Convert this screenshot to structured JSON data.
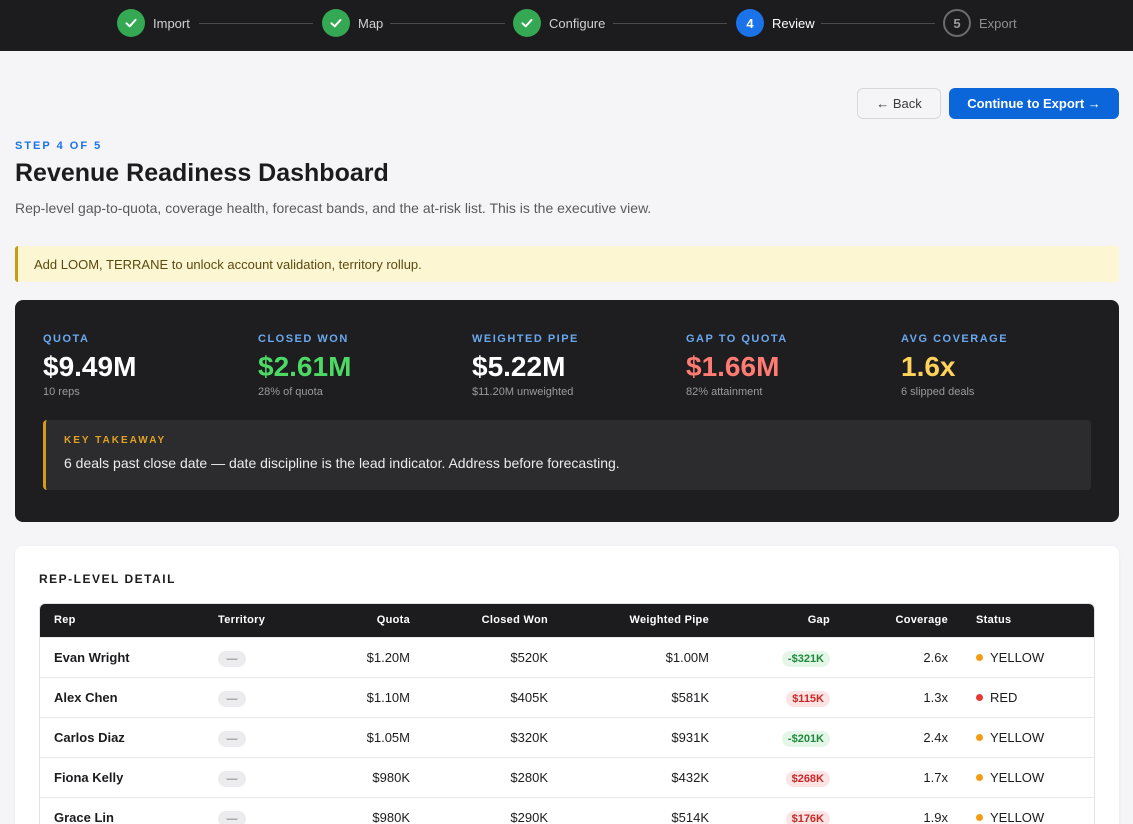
{
  "stepper": {
    "steps": [
      {
        "label": "Import",
        "state": "done",
        "icon": "check-icon"
      },
      {
        "label": "Map",
        "state": "done",
        "icon": "check-icon"
      },
      {
        "label": "Configure",
        "state": "done",
        "icon": "check-icon"
      },
      {
        "label": "Review",
        "state": "active",
        "number": "4"
      },
      {
        "label": "Export",
        "state": "pending",
        "number": "5"
      }
    ]
  },
  "header": {
    "back_label": "← Back",
    "next_label": "Continue to Export →",
    "eyebrow": "STEP 4 OF 5",
    "title": "Revenue Readiness Dashboard",
    "subtitle": "Rep-level gap-to-quota, coverage health, forecast bands, and the at-risk list. This is the executive view."
  },
  "banner": {
    "text": "Add LOOM, TERRANE to unlock account validation, territory rollup."
  },
  "kpis": [
    {
      "label": "QUOTA",
      "value": "$9.49M",
      "sub": "10 reps",
      "color": "#ffffff"
    },
    {
      "label": "CLOSED WON",
      "value": "$2.61M",
      "sub": "28% of quota",
      "color": "#4cd964"
    },
    {
      "label": "WEIGHTED PIPE",
      "value": "$5.22M",
      "sub": "$11.20M unweighted",
      "color": "#ffffff"
    },
    {
      "label": "GAP TO QUOTA",
      "value": "$1.66M",
      "sub": "82% attainment",
      "color": "#ff7b73"
    },
    {
      "label": "AVG COVERAGE",
      "value": "1.6x",
      "sub": "6 slipped deals",
      "color": "#ffd25a"
    }
  ],
  "takeaway": {
    "label": "KEY TAKEAWAY",
    "text": "6 deals past close date — date discipline is the lead indicator. Address before forecasting."
  },
  "table": {
    "title": "REP-LEVEL DETAIL",
    "columns": [
      "Rep",
      "Territory",
      "Quota",
      "Closed Won",
      "Weighted Pipe",
      "Gap",
      "Coverage",
      "Status"
    ],
    "rows": [
      {
        "rep": "Evan Wright",
        "territory": "—",
        "quota": "$1.20M",
        "closed": "$520K",
        "pipe": "$1.00M",
        "gap": "-$321K",
        "gap_type": "pos",
        "coverage": "2.6x",
        "status": "YELLOW",
        "status_color": "#f39c12"
      },
      {
        "rep": "Alex Chen",
        "territory": "—",
        "quota": "$1.10M",
        "closed": "$405K",
        "pipe": "$581K",
        "gap": "$115K",
        "gap_type": "neg",
        "coverage": "1.3x",
        "status": "RED",
        "status_color": "#e53935"
      },
      {
        "rep": "Carlos Diaz",
        "territory": "—",
        "quota": "$1.05M",
        "closed": "$320K",
        "pipe": "$931K",
        "gap": "-$201K",
        "gap_type": "pos",
        "coverage": "2.4x",
        "status": "YELLOW",
        "status_color": "#f39c12"
      },
      {
        "rep": "Fiona Kelly",
        "territory": "—",
        "quota": "$980K",
        "closed": "$280K",
        "pipe": "$432K",
        "gap": "$268K",
        "gap_type": "neg",
        "coverage": "1.7x",
        "status": "YELLOW",
        "status_color": "#f39c12"
      },
      {
        "rep": "Grace Lin",
        "territory": "—",
        "quota": "$980K",
        "closed": "$290K",
        "pipe": "$514K",
        "gap": "$176K",
        "gap_type": "neg",
        "coverage": "1.9x",
        "status": "YELLOW",
        "status_color": "#f39c12"
      }
    ]
  }
}
